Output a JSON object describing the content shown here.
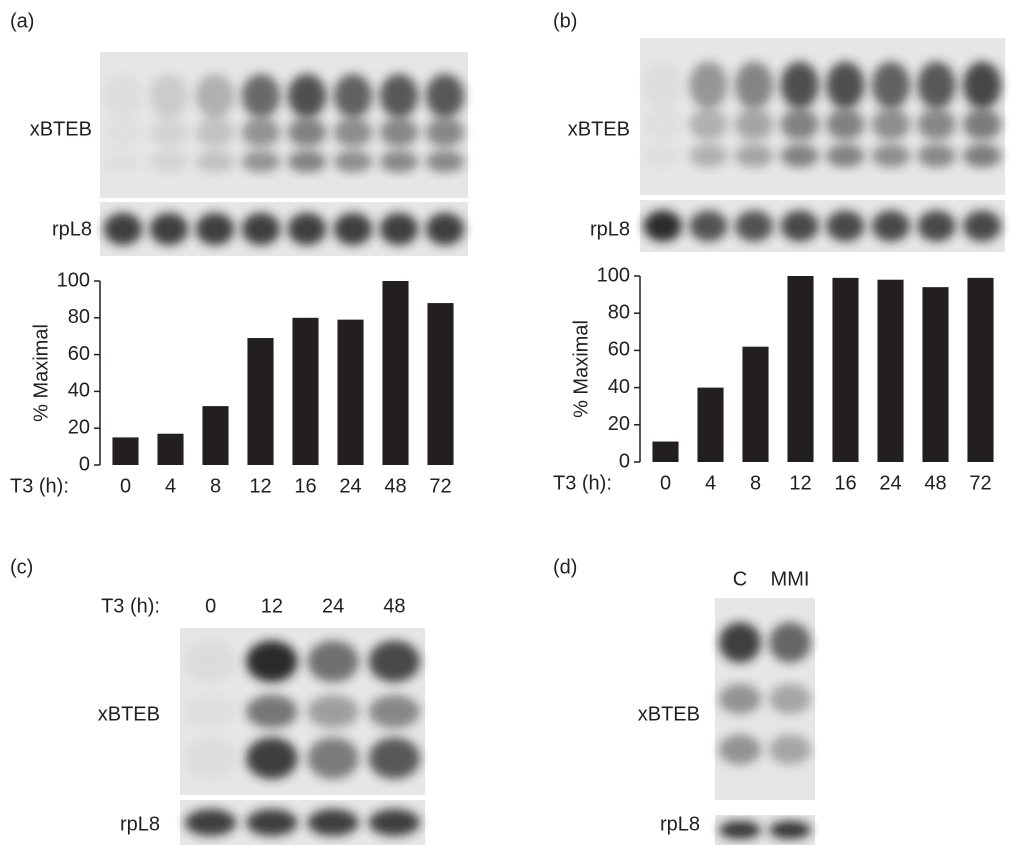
{
  "chart_data": [
    {
      "type": "bar",
      "x_label": "T3 (h):",
      "y_label": "% Maximal",
      "categories": [
        "0",
        "4",
        "8",
        "12",
        "16",
        "24",
        "48",
        "72"
      ],
      "values": [
        15,
        17,
        32,
        69,
        80,
        79,
        100,
        88
      ],
      "color": "#231f20",
      "ylim": [
        0,
        100
      ],
      "yticks": [
        0,
        20,
        40,
        60,
        80,
        100
      ]
    },
    {
      "type": "bar",
      "x_label": "T3 (h):",
      "y_label": "% Maximal",
      "categories": [
        "0",
        "4",
        "8",
        "12",
        "16",
        "24",
        "48",
        "72"
      ],
      "values": [
        11,
        40,
        62,
        100,
        99,
        98,
        94,
        99
      ],
      "color": "#231f20",
      "ylim": [
        0,
        100
      ],
      "yticks": [
        0,
        20,
        40,
        60,
        80,
        100
      ]
    }
  ],
  "figure": {
    "panels": [
      {
        "label": "(a)",
        "row_labels": [
          "xBTEB",
          "rpL8"
        ]
      },
      {
        "label": "(b)",
        "row_labels": [
          "xBTEB",
          "rpL8"
        ]
      },
      {
        "label": "(c)",
        "lane_header": "T3 (h):",
        "lanes": [
          "0",
          "12",
          "24",
          "48"
        ],
        "row_labels": [
          "xBTEB",
          "rpL8"
        ]
      },
      {
        "label": "(d)",
        "lanes": [
          "C",
          "MMI"
        ],
        "row_labels": [
          "xBTEB",
          "rpL8"
        ]
      }
    ]
  }
}
